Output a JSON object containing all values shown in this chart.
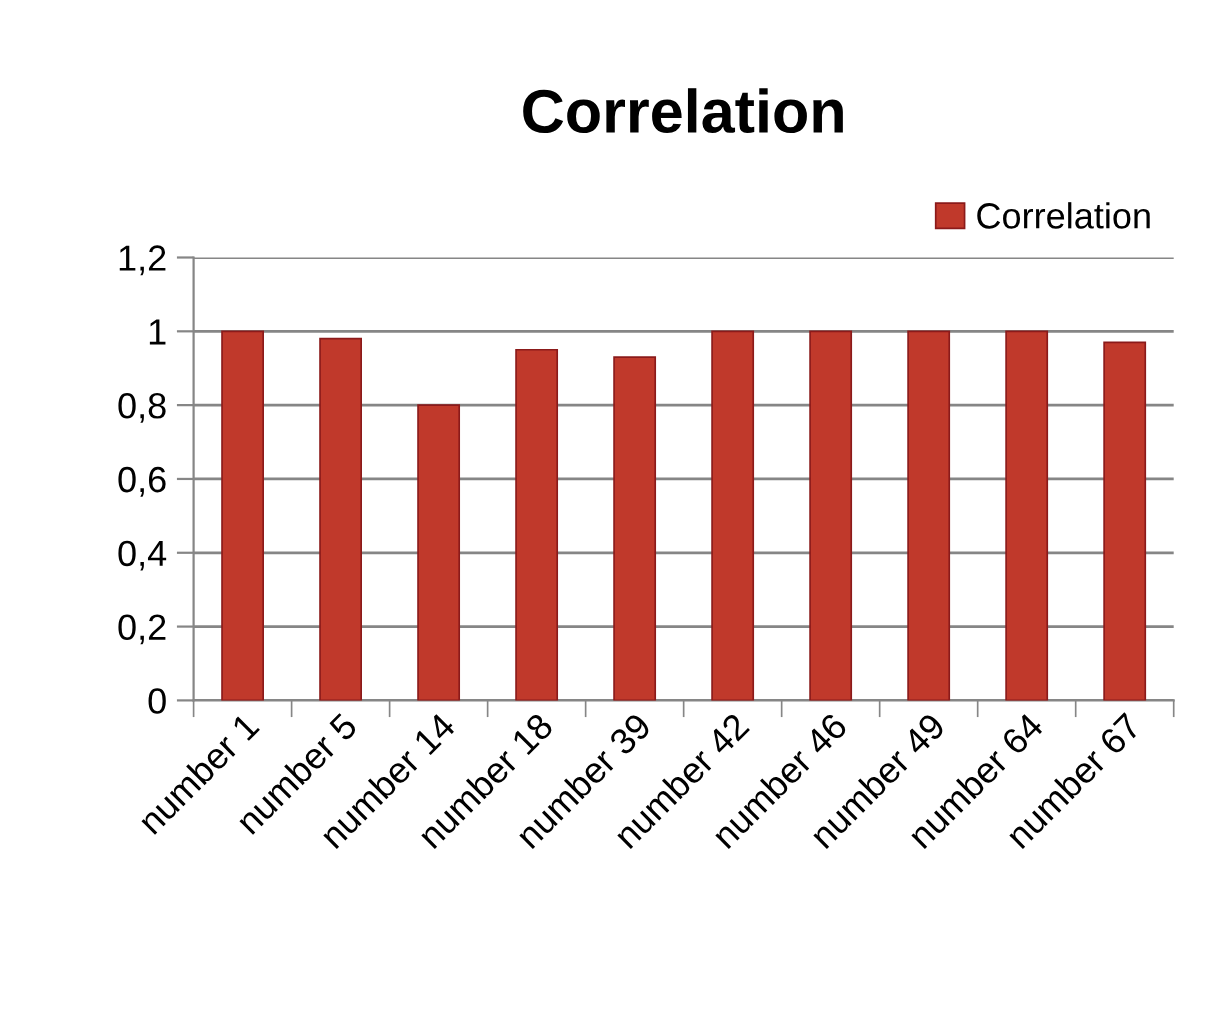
{
  "chart_data": {
    "type": "bar",
    "title": "Correlation",
    "categories": [
      "number 1",
      "number 5",
      "number 14",
      "number 18",
      "number 39",
      "number 42",
      "number 46",
      "number 49",
      "number 64",
      "number 67"
    ],
    "series": [
      {
        "name": "Correlation",
        "color": "#c0392b",
        "values": [
          1.0,
          0.98,
          0.8,
          0.95,
          0.93,
          1.0,
          1.0,
          1.0,
          1.0,
          0.97
        ]
      }
    ],
    "ylim": [
      0,
      1.2
    ],
    "yticks": [
      0,
      {
        "value": 0.2,
        "label": "0,2"
      },
      {
        "value": 0.4,
        "label": "0,4"
      },
      {
        "value": 0.6,
        "label": "0,6"
      },
      {
        "value": 0.8,
        "label": "0,8"
      },
      1,
      {
        "value": 1.2,
        "label": "1,2"
      }
    ],
    "grid": "y",
    "legend": "top right"
  }
}
